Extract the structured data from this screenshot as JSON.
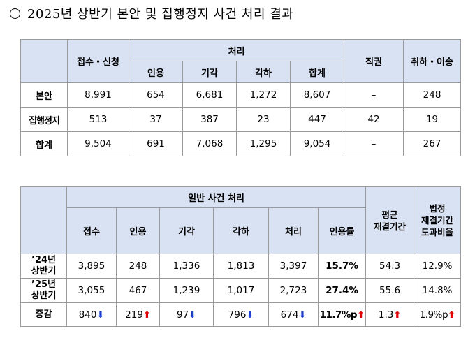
{
  "title": "2025년 상반기 본안 및 집행정지 사건 처리 결과",
  "table1": {
    "headers": {
      "receipt": "접수・신청",
      "processing": "처리",
      "sub": [
        "인용",
        "기각",
        "각하",
        "합계"
      ],
      "ex_officio": "직권",
      "withdrawal": "취하・이송"
    },
    "rows": [
      {
        "label": "본안",
        "receipt": "8,991",
        "cite": "654",
        "dismiss": "6,681",
        "reject": "1,272",
        "total": "8,607",
        "ex_officio": "–",
        "withdrawal": "248"
      },
      {
        "label": "집행정지",
        "receipt": "513",
        "cite": "37",
        "dismiss": "387",
        "reject": "23",
        "total": "447",
        "ex_officio": "42",
        "withdrawal": "19"
      },
      {
        "label": "합계",
        "receipt": "9,504",
        "cite": "691",
        "dismiss": "7,068",
        "reject": "1,295",
        "total": "9,054",
        "ex_officio": "–",
        "withdrawal": "267"
      }
    ]
  },
  "table2": {
    "headers": {
      "general": "일반 사건 처리",
      "sub": [
        "접수",
        "인용",
        "기각",
        "각하",
        "처리",
        "인용률"
      ],
      "avg_period": [
        "평균",
        "재결기간"
      ],
      "legal_ratio": [
        "법정",
        "재결기간",
        "도과비율"
      ]
    },
    "rows": [
      {
        "label": [
          "’24년",
          "상반기"
        ],
        "receipt": "3,895",
        "cite": "248",
        "dismiss": "1,336",
        "reject": "1,813",
        "processed": "3,397",
        "rate": "15.7%",
        "avg": "54.3",
        "ratio": "12.9%"
      },
      {
        "label": [
          "’25년",
          "상반기"
        ],
        "receipt": "3,055",
        "cite": "467",
        "dismiss": "1,239",
        "reject": "1,017",
        "processed": "2,723",
        "rate": "27.4%",
        "avg": "55.6",
        "ratio": "14.8%"
      }
    ],
    "change": {
      "label": "증감",
      "receipt": "840",
      "cite": "219",
      "dismiss": "97",
      "reject": "796",
      "processed": "674",
      "rate": "11.7%p",
      "avg": "1.3",
      "ratio": "1.9%p",
      "arrow_up": "⬆",
      "arrow_down": "⬇",
      "colors": {
        "up": "#e00000",
        "down": "#1f3fd1"
      }
    }
  }
}
